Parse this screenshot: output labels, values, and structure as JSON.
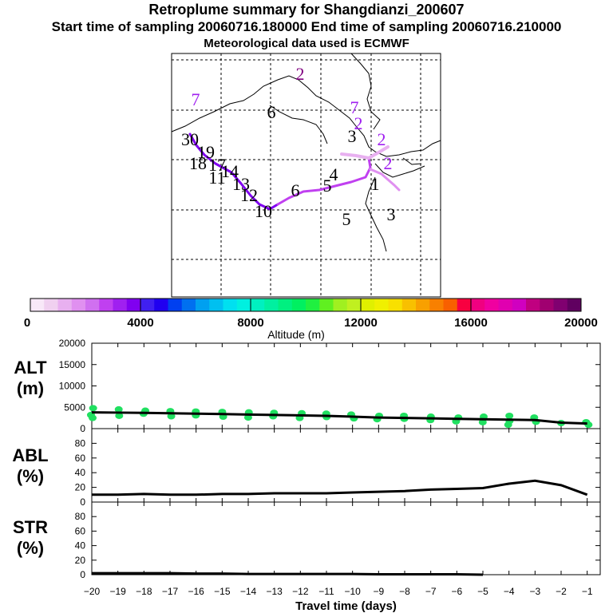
{
  "header": {
    "title": "Retroplume summary for Shangdianzi_200607",
    "sampling_line": "Start time of sampling 20060716.180000     End time of sampling 20060716.210000",
    "met_line": "Meteorological data used is ECMWF"
  },
  "colors": {
    "scale": [
      "#f8e8f8",
      "#f0d0f0",
      "#e8b0f0",
      "#e090f0",
      "#d070f0",
      "#c040f0",
      "#a020f0",
      "#8000f0",
      "#4020f0",
      "#2000f0",
      "#0040f0",
      "#0070f0",
      "#00a0f0",
      "#00c0f0",
      "#00e0f0",
      "#00f0e0",
      "#00f0c0",
      "#00f0a0",
      "#00f080",
      "#00f060",
      "#20f040",
      "#60f020",
      "#a0f020",
      "#c0f020",
      "#e0f000",
      "#f0f000",
      "#f8e000",
      "#f8c000",
      "#f8a000",
      "#f88000",
      "#f86000",
      "#f80040",
      "#f00080",
      "#f000a0",
      "#e000b0",
      "#d000c0",
      "#c00080",
      "#a00070",
      "#800070",
      "#600060"
    ],
    "track": "#a020f0",
    "track_light": "#e090f0",
    "points": "#20e060"
  },
  "colorbar": {
    "labels": [
      "0",
      "4000",
      "8000",
      "12000",
      "16000",
      "20000"
    ],
    "title": "Altitude (m)"
  },
  "map": {
    "labels": [
      {
        "t": "2",
        "c": "#800080"
      },
      {
        "t": "7",
        "c": "#a020f0"
      },
      {
        "t": "6",
        "c": "#000000"
      },
      {
        "t": "7",
        "c": "#a020f0"
      },
      {
        "t": "2",
        "c": "#a020f0"
      },
      {
        "t": "3",
        "c": "#000000"
      },
      {
        "t": "30",
        "c": "#000000"
      },
      {
        "t": "19",
        "c": "#000000"
      },
      {
        "t": "18",
        "c": "#000000"
      },
      {
        "t": "17",
        "c": "#000000"
      },
      {
        "t": "14",
        "c": "#000000"
      },
      {
        "t": "11",
        "c": "#000000"
      },
      {
        "t": "13",
        "c": "#000000"
      },
      {
        "t": "12",
        "c": "#000000"
      },
      {
        "t": "10",
        "c": "#000000"
      },
      {
        "t": "6",
        "c": "#000000"
      },
      {
        "t": "5",
        "c": "#000000"
      },
      {
        "t": "4",
        "c": "#000000"
      },
      {
        "t": "1",
        "c": "#000000"
      },
      {
        "t": "2",
        "c": "#a020f0"
      },
      {
        "t": "2",
        "c": "#a020f0"
      },
      {
        "t": "5",
        "c": "#000000"
      },
      {
        "t": "3",
        "c": "#000000"
      }
    ]
  },
  "chart_data": [
    {
      "type": "scatter",
      "panel": "ALT (m)",
      "label_main": "ALT",
      "label_unit": "(m)",
      "ylim": [
        0,
        20000
      ],
      "yticks": [
        "0",
        "5000",
        "10000",
        "15000",
        "20000"
      ],
      "xlim": [
        -20,
        -0.5
      ],
      "mean_line": {
        "x": [
          -20,
          -19,
          -18,
          -17,
          -16,
          -15,
          -14,
          -13,
          -12,
          -11,
          -10,
          -9,
          -8,
          -7,
          -6,
          -5,
          -4,
          -3,
          -2,
          -1
        ],
        "y": [
          3800,
          3750,
          3700,
          3600,
          3500,
          3400,
          3300,
          3200,
          3100,
          3000,
          2800,
          2600,
          2500,
          2400,
          2300,
          2200,
          2100,
          2000,
          1400,
          1200
        ]
      },
      "points": [
        [
          -20,
          4800
        ],
        [
          -20,
          3200
        ],
        [
          -20,
          2500
        ],
        [
          -19,
          4500
        ],
        [
          -19,
          3000
        ],
        [
          -18,
          4200
        ],
        [
          -18,
          3500
        ],
        [
          -17,
          4100
        ],
        [
          -17,
          2900
        ],
        [
          -16,
          4000
        ],
        [
          -16,
          3100
        ],
        [
          -15,
          3900
        ],
        [
          -15,
          2800
        ],
        [
          -14,
          3800
        ],
        [
          -14,
          2600
        ],
        [
          -13,
          3700
        ],
        [
          -13,
          2900
        ],
        [
          -12,
          3600
        ],
        [
          -12,
          2500
        ],
        [
          -11,
          3500
        ],
        [
          -11,
          2700
        ],
        [
          -10,
          3300
        ],
        [
          -10,
          2400
        ],
        [
          -9,
          3000
        ],
        [
          -9,
          2200
        ],
        [
          -8,
          3000
        ],
        [
          -8,
          2300
        ],
        [
          -7,
          2800
        ],
        [
          -7,
          2000
        ],
        [
          -6,
          2600
        ],
        [
          -6,
          1700
        ],
        [
          -5,
          2800
        ],
        [
          -5,
          1500
        ],
        [
          -4,
          3000
        ],
        [
          -4,
          1800
        ],
        [
          -4,
          900
        ],
        [
          -3,
          2600
        ],
        [
          -3,
          1600
        ],
        [
          -2,
          1300
        ],
        [
          -1,
          1500
        ],
        [
          -1,
          900
        ]
      ]
    },
    {
      "type": "line",
      "panel": "ABL (%)",
      "label_main": "ABL",
      "label_unit": "(%)",
      "ylim": [
        0,
        100
      ],
      "yticks": [
        "0",
        "20",
        "40",
        "60",
        "80"
      ],
      "xlim": [
        -20,
        -0.5
      ],
      "series": [
        {
          "name": "ABL",
          "x": [
            -20,
            -19,
            -18,
            -17,
            -16,
            -15,
            -14,
            -13,
            -12,
            -11,
            -10,
            -9,
            -8,
            -7,
            -6,
            -5,
            -4,
            -3,
            -2,
            -1
          ],
          "y": [
            10,
            10,
            11,
            10,
            10,
            11,
            11,
            12,
            12,
            12,
            13,
            14,
            15,
            17,
            18,
            19,
            25,
            29,
            23,
            10
          ]
        }
      ]
    },
    {
      "type": "line",
      "panel": "STR (%)",
      "label_main": "STR",
      "label_unit": "(%)",
      "ylim": [
        0,
        100
      ],
      "yticks": [
        "0",
        "20",
        "40",
        "60",
        "80"
      ],
      "xlim": [
        -20,
        -0.5
      ],
      "xticks": [
        "−20",
        "−19",
        "−18",
        "−17",
        "−16",
        "−15",
        "−14",
        "−13",
        "−12",
        "−11",
        "−10",
        "−9",
        "−8",
        "−7",
        "−6",
        "−5",
        "−4",
        "−3",
        "−2",
        "−1"
      ],
      "xlabel": "Travel time (days)",
      "series": [
        {
          "name": "STR",
          "x": [
            -20,
            -19,
            -18,
            -17,
            -16,
            -15,
            -14,
            -13,
            -12,
            -11,
            -10,
            -9,
            -8,
            -7,
            -6,
            -5
          ],
          "y": [
            2,
            2,
            2,
            2,
            1.5,
            1.5,
            1,
            1,
            1,
            1,
            1,
            0.5,
            0.5,
            0.5,
            0.5,
            0
          ]
        }
      ]
    }
  ]
}
